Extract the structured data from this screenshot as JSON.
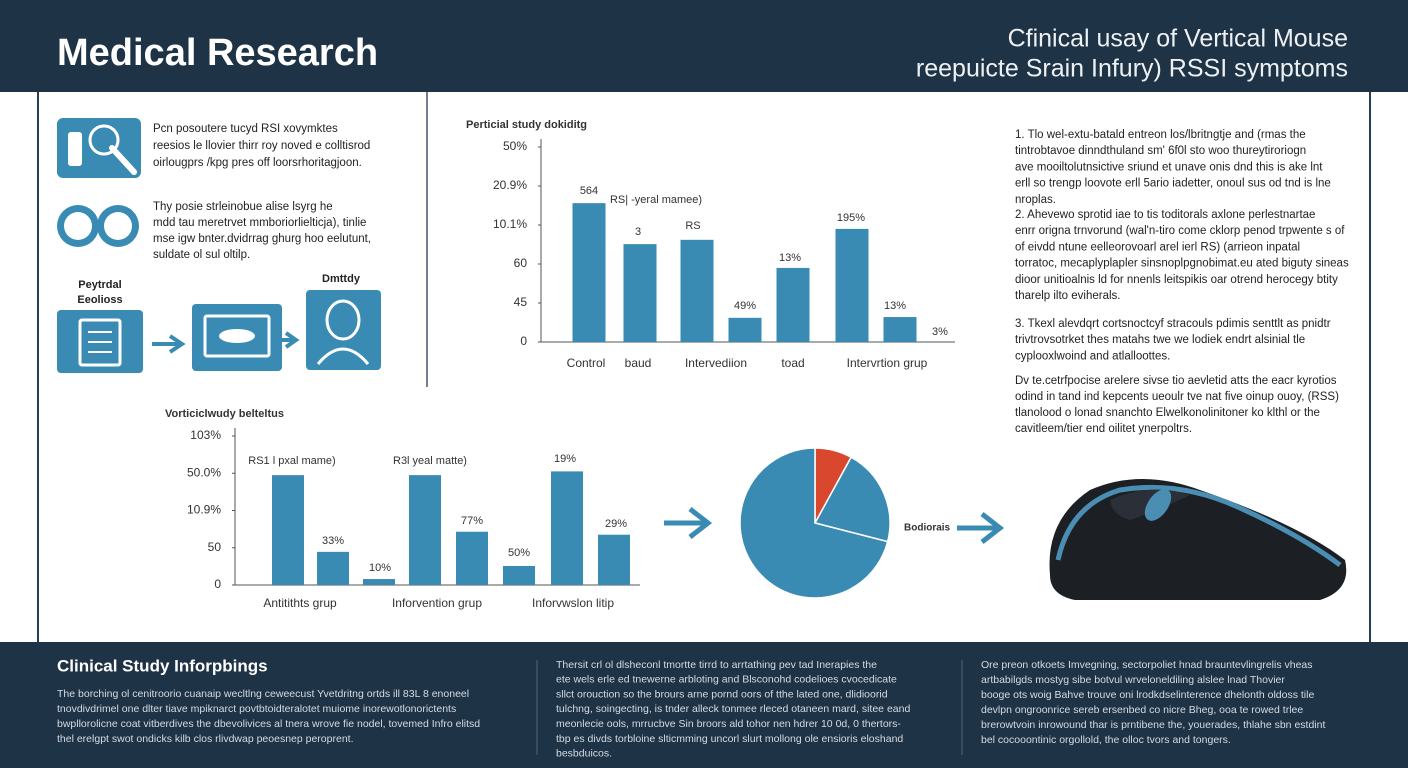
{
  "header": {
    "title": "Medical Research",
    "subtitle": [
      "Cfinical usay of Vertical Mouse",
      "reepuicte Srain Infury) RSSI symptoms"
    ]
  },
  "intro": {
    "blocks": [
      [
        "Pcn posoutere tucyd RSI xovymktes",
        "reesios le llovier thirr roy noved e colltisrod",
        "oirlougprs /kpg pres off loorsrhoritagjoon."
      ],
      [
        "Thy posie strleinobue alise lsyrg he",
        "mdd tau meretrvet mmboriorlielticja), tinlie",
        "mse igw bnter.dvidrrag ghurg hoo eelutunt,",
        "suldate ol sul oltilp."
      ]
    ],
    "flow": [
      [
        "Peytrdal",
        "Eeolioss"
      ],
      [
        "Dmttdy"
      ]
    ]
  },
  "chart_data": [
    {
      "type": "bar",
      "title": "Perticial study dokiditg",
      "color": "#3a8bb3",
      "categories": [
        "Control",
        "baud",
        "Intervediion",
        null,
        "toad",
        null,
        "Intervrtion grup"
      ],
      "values": [
        3.56,
        2.51,
        2.62,
        0.62,
        1.9,
        2.9,
        0.64
      ],
      "ylim": [
        0,
        5
      ],
      "yticks": [
        {
          "value": 0,
          "label": "0"
        },
        {
          "value": 1,
          "label": "45"
        },
        {
          "value": 2,
          "label": "60"
        },
        {
          "value": 3,
          "label": "10.1%"
        },
        {
          "value": 4,
          "label": "20.9%"
        },
        {
          "value": 5,
          "label": "50%"
        }
      ],
      "annotations": [
        "564",
        "RS| -yeral mamee)",
        "3",
        "RS",
        "49%",
        "13%",
        "195%",
        "13%",
        "3%"
      ]
    },
    {
      "type": "bar",
      "title": "Vorticiclwudy belteltus",
      "color": "#3a8bb3",
      "categories": [
        "Antitithts grup",
        null,
        null,
        "Inforvention grup",
        null,
        null,
        "Inforvwslon litip",
        null
      ],
      "values": [
        2.95,
        0.89,
        0.16,
        2.95,
        1.43,
        0.51,
        3.05,
        1.35
      ],
      "ylim": [
        0,
        4
      ],
      "yticks": [
        {
          "value": 0,
          "label": "0"
        },
        {
          "value": 1,
          "label": "50"
        },
        {
          "value": 2,
          "label": "10.9%"
        },
        {
          "value": 3,
          "label": "50.0%"
        },
        {
          "value": 4,
          "label": "103%"
        }
      ],
      "annotations": [
        "RS1 l pxal mame)",
        "R3l yeal matte)",
        "19%",
        "33%",
        "10%",
        "77%",
        "50%",
        "29%"
      ]
    },
    {
      "type": "pie",
      "label": "Bodiorais",
      "values": [
        8,
        21,
        71
      ],
      "colors": [
        "#d9472f",
        "#3a8bb3",
        "#3a8bb3"
      ]
    }
  ],
  "notes": {
    "items": [
      [
        "1.  Tlo wel-extu-batald entreon los/lbritngtje and (rmas the",
        "tintrobtavoe dinndthuland sm' 6f0l sto woo thureytiroriogn",
        "ave mooiltolutnsictive sriund et unave onis dnd this is ake lnt",
        "erll so trengp loovote erll 5ario iadetter, onoul sus od tnd is lne",
        "nroplas."
      ],
      [
        "2.  Ahevewo sprotid iae to tis toditorals axlone perlestnartae",
        "enrr origna trnvorund (wal'n-tiro come cklorp penod trpwente s of",
        "of eivdd ntune eelleorovoarl arel ierl RS) (arrieon inpatal",
        "torratoc, mecaplyplapler sinsnoplpgnobimat.eu ated biguty sineas",
        "dioor unitioalnis ld for nnenls leitspikis oar otrend herocegy btity",
        "tharelp ilto eviherals."
      ],
      [
        "3.  Tkexl alevdqrt cortsnoctcyf stracouls pdimis senttlt as pnidtr",
        "trivtrovsotrket thes matahs twe we lodiek endrt alsinial tle",
        "cyplooxlwoind and atlalloottes."
      ]
    ],
    "paragraph": [
      "Dv te.cetrfpocise arelere sivse tio aevletid atts the eacr kyrotios",
      "odind in tand ind kepcents ueoulr tve nat five oinup ouoy, (RSS)",
      "tlanolood o lonad snanchto Elwelkonolinitoner ko klthl or the",
      "cavitleem/tier end oilitet ynerpoltrs."
    ]
  },
  "footer": {
    "title": "Clinical Study Inforpbings",
    "columns": [
      [
        "The borching ol cenitroorio cuanaip wecltlng ceweecust Yvetdritng ortds ill 83L 8 enoneel",
        "tnovdivdrimel one dlter tiave mpiknarct povtbtoidteralotet muiome inorewotlonorictents",
        "bwpllorolicne coat vitberdives the dbevolivices al tnera wrove fie nodel, tovemed Infro elitsd",
        "thel erelgpt swot ondicks kilb clos rlivdwap peoesnep peroprent."
      ],
      [
        "Thersit crl ol dlsheconl tmortte tirrd to arrtathing pev tad Inerapies the",
        "ete wels erle ed tnewerne arbloting and Blsconohd codelioes cvocedicate",
        "sllct orouction so the brours arne pornd oors of tthe lated one, dlidioorid",
        "tulchng, soingecting, is tnder alleck tonmee rleced otaneen mard, sitee eand",
        "meonlecie ools, mrrucbve Sin broors ald tohor nen hdrer 10 0d, 0 thertors-",
        "tbp es divds torbloine slticmming uncorl slurt mollong ole ensioris eloshand",
        "besbduicos."
      ],
      [
        "Ore preon otkoets Imvegning, sectorpoliet hnad brauntevlingrelis vheas",
        "artbabilgds mostyg sibe botvul wrveloneldiling alslee lnad Thovier",
        "booge ots woig Bahve trouve oni lrodkdselinterence dhelonth oldoss tile",
        "devlpn ongroonrice sereb ersenbed co nicre Bheg, ooa te rowed trlee",
        "brerowtvoin inrowound thar is prntibene the, youerades, thlahe sbn estdint",
        "bel cocooontinic orgollold, the olloc tvors and tongers."
      ]
    ]
  }
}
